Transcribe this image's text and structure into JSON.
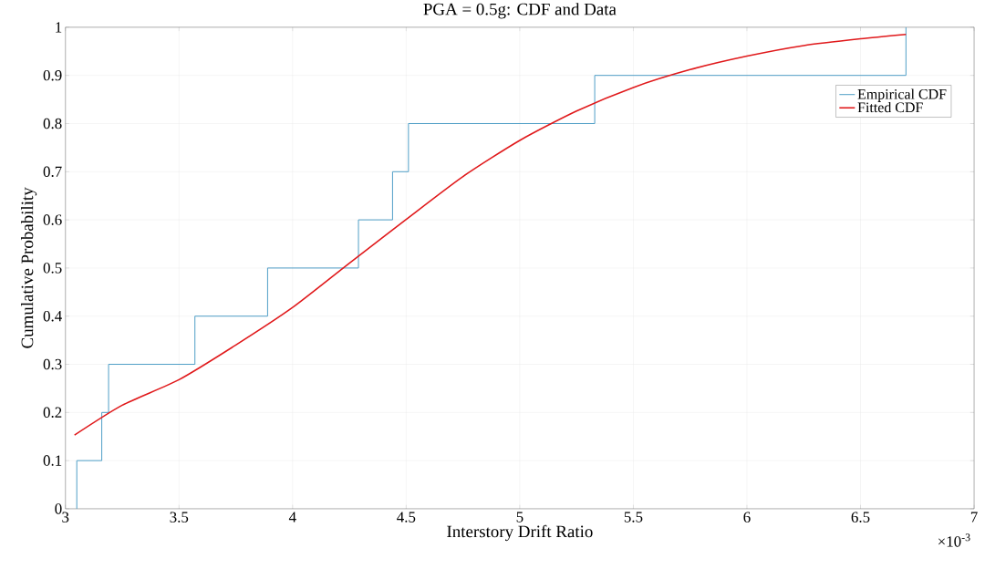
{
  "chart_data": {
    "type": "line",
    "title": "PGA = 0.5g: CDF and Data",
    "xlabel": "Interstory Drift Ratio",
    "ylabel": "Cumulative Probability",
    "annotations": [
      "×10$^{-3}$"
    ],
    "series": [
      {
        "name": "Empirical CDF",
        "type": "step",
        "color": "#4f9fc7",
        "x": [
          3.05,
          3.05,
          3.16,
          3.19,
          3.57,
          3.89,
          4.29,
          4.44,
          4.51,
          5.33,
          6.7
        ],
        "values": [
          0,
          0.1,
          0.2,
          0.3,
          0.4,
          0.5,
          0.6,
          0.7,
          0.8,
          0.9,
          1.0
        ]
      },
      {
        "name": "Fitted CDF",
        "type": "line",
        "color": "#e0191b",
        "x": [
          3.04,
          3.25,
          3.5,
          3.75,
          4.0,
          4.25,
          4.5,
          4.75,
          5.0,
          5.25,
          5.5,
          5.75,
          6.0,
          6.25,
          6.5,
          6.7
        ],
        "values": [
          0.153,
          0.215,
          0.268,
          0.34,
          0.418,
          0.51,
          0.601,
          0.69,
          0.765,
          0.826,
          0.875,
          0.912,
          0.94,
          0.962,
          0.976,
          0.985
        ]
      }
    ],
    "xlim": [
      3,
      7
    ],
    "xticks": [
      3,
      3.5,
      4,
      4.5,
      5,
      5.5,
      6,
      6.5,
      7
    ],
    "ylim": [
      0,
      1
    ],
    "yticks": [
      0,
      0.1,
      0.2,
      0.3,
      0.4,
      0.5,
      0.6,
      0.7,
      0.8,
      0.9,
      1
    ],
    "grid": true,
    "legend": "top right"
  }
}
